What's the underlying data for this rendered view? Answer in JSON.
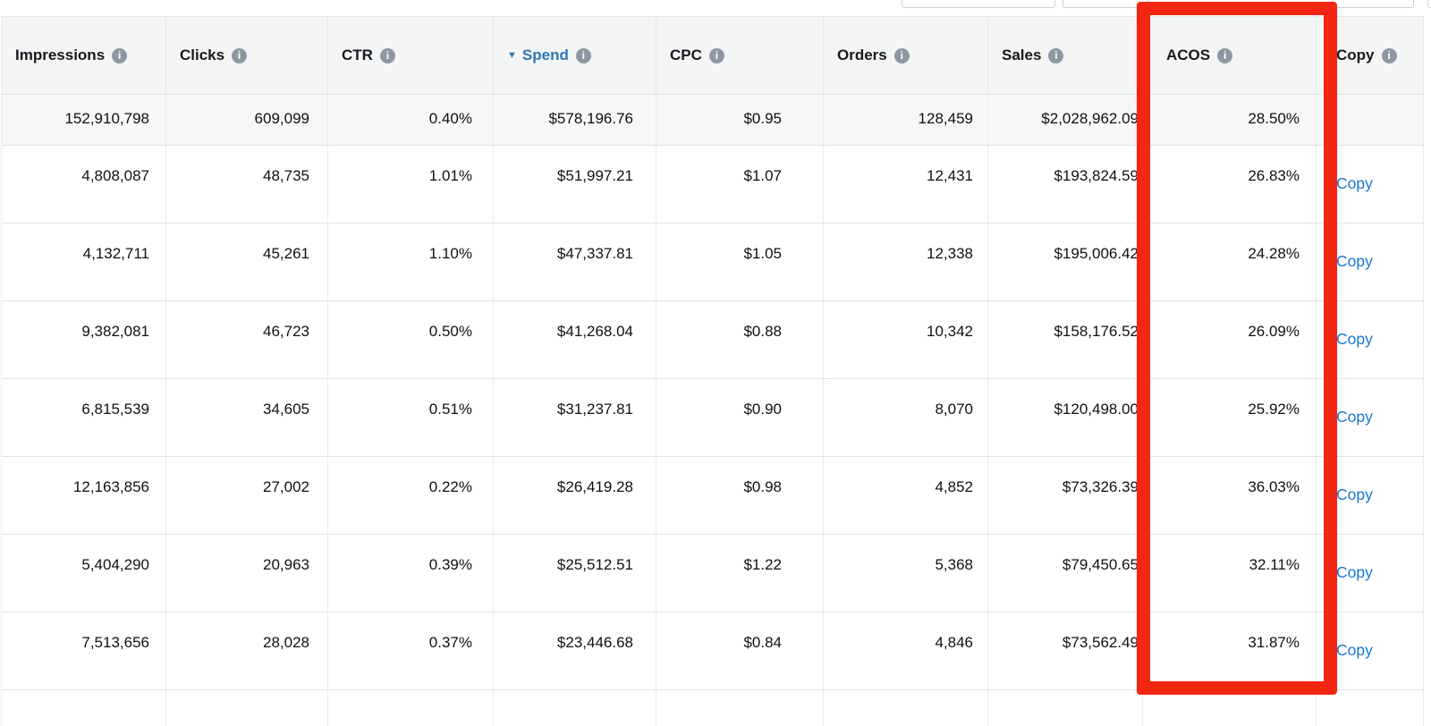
{
  "labels": {
    "copy_link": "Copy"
  },
  "icons": {
    "info_glyph": "i",
    "sort_desc_glyph": "▼"
  },
  "annotation": {
    "type": "highlight-box",
    "color": "#f22613",
    "target_column": "ACOS"
  },
  "table": {
    "columns": [
      {
        "id": "impressions",
        "label": "Impressions",
        "has_info": true,
        "sort": null
      },
      {
        "id": "clicks",
        "label": "Clicks",
        "has_info": true,
        "sort": null
      },
      {
        "id": "ctr",
        "label": "CTR",
        "has_info": true,
        "sort": null
      },
      {
        "id": "spend",
        "label": "Spend",
        "has_info": true,
        "sort": "desc"
      },
      {
        "id": "cpc",
        "label": "CPC",
        "has_info": true,
        "sort": null
      },
      {
        "id": "orders",
        "label": "Orders",
        "has_info": true,
        "sort": null
      },
      {
        "id": "sales",
        "label": "Sales",
        "has_info": true,
        "sort": null
      },
      {
        "id": "acos",
        "label": "ACOS",
        "has_info": true,
        "sort": null
      },
      {
        "id": "copy",
        "label": "Copy",
        "has_info": true,
        "sort": null
      }
    ],
    "totals": {
      "cells": [
        "152,910,798",
        "609,099",
        "0.40%",
        "$578,196.76",
        "$0.95",
        "128,459",
        "$2,028,962.09",
        "28.50%",
        ""
      ]
    },
    "rows": [
      {
        "cells": [
          "4,808,087",
          "48,735",
          "1.01%",
          "$51,997.21",
          "$1.07",
          "12,431",
          "$193,824.59",
          "26.83%"
        ]
      },
      {
        "cells": [
          "4,132,711",
          "45,261",
          "1.10%",
          "$47,337.81",
          "$1.05",
          "12,338",
          "$195,006.42",
          "24.28%"
        ]
      },
      {
        "cells": [
          "9,382,081",
          "46,723",
          "0.50%",
          "$41,268.04",
          "$0.88",
          "10,342",
          "$158,176.52",
          "26.09%"
        ]
      },
      {
        "cells": [
          "6,815,539",
          "34,605",
          "0.51%",
          "$31,237.81",
          "$0.90",
          "8,070",
          "$120,498.00",
          "25.92%"
        ]
      },
      {
        "cells": [
          "12,163,856",
          "27,002",
          "0.22%",
          "$26,419.28",
          "$0.98",
          "4,852",
          "$73,326.39",
          "36.03%"
        ]
      },
      {
        "cells": [
          "5,404,290",
          "20,963",
          "0.39%",
          "$25,512.51",
          "$1.22",
          "5,368",
          "$79,450.65",
          "32.11%"
        ]
      },
      {
        "cells": [
          "7,513,656",
          "28,028",
          "0.37%",
          "$23,446.68",
          "$0.84",
          "4,846",
          "$73,562.49",
          "31.87%"
        ]
      }
    ]
  }
}
